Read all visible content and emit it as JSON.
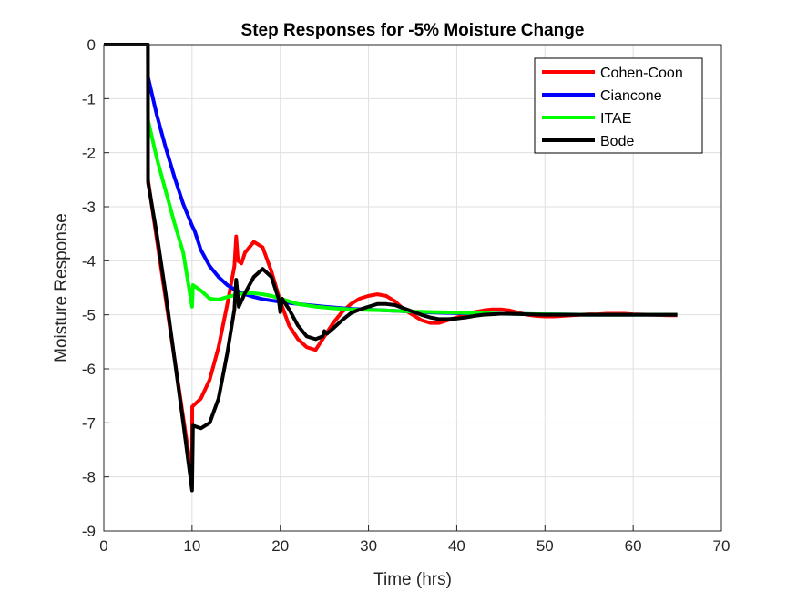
{
  "chart_data": {
    "type": "line",
    "title": "Step Responses for -5% Moisture Change",
    "xlabel": "Time (hrs)",
    "ylabel": "Moisture Response",
    "xlim": [
      0,
      70
    ],
    "ylim": [
      -9,
      0
    ],
    "xticks": [
      0,
      10,
      20,
      30,
      40,
      50,
      60,
      70
    ],
    "yticks": [
      0,
      -1,
      -2,
      -3,
      -4,
      -5,
      -6,
      -7,
      -8,
      -9
    ],
    "grid": true,
    "legend_position": "top-right",
    "series": [
      {
        "name": "Cohen-Coon",
        "color": "#ff0000",
        "points": [
          [
            0,
            0
          ],
          [
            5,
            0
          ],
          [
            5.01,
            -2.5
          ],
          [
            6,
            -3.6
          ],
          [
            7,
            -4.7
          ],
          [
            8,
            -5.8
          ],
          [
            9,
            -6.9
          ],
          [
            10,
            -8.0
          ],
          [
            10.02,
            -6.7
          ],
          [
            11,
            -6.55
          ],
          [
            12,
            -6.2
          ],
          [
            13,
            -5.6
          ],
          [
            14,
            -4.8
          ],
          [
            14.8,
            -4.1
          ],
          [
            15,
            -3.55
          ],
          [
            15.2,
            -4.0
          ],
          [
            15.6,
            -4.05
          ],
          [
            16,
            -3.85
          ],
          [
            17,
            -3.65
          ],
          [
            18,
            -3.75
          ],
          [
            19,
            -4.2
          ],
          [
            20,
            -4.75
          ],
          [
            21,
            -5.2
          ],
          [
            22,
            -5.45
          ],
          [
            23,
            -5.6
          ],
          [
            24,
            -5.65
          ],
          [
            25,
            -5.4
          ],
          [
            26,
            -5.15
          ],
          [
            27,
            -4.95
          ],
          [
            28,
            -4.8
          ],
          [
            29,
            -4.7
          ],
          [
            30,
            -4.65
          ],
          [
            31,
            -4.62
          ],
          [
            32,
            -4.65
          ],
          [
            33,
            -4.75
          ],
          [
            34,
            -4.9
          ],
          [
            35,
            -5.0
          ],
          [
            36,
            -5.1
          ],
          [
            37,
            -5.15
          ],
          [
            38,
            -5.15
          ],
          [
            39,
            -5.1
          ],
          [
            40,
            -5.05
          ],
          [
            41,
            -5.0
          ],
          [
            42,
            -4.95
          ],
          [
            43,
            -4.92
          ],
          [
            44,
            -4.9
          ],
          [
            45,
            -4.9
          ],
          [
            46,
            -4.92
          ],
          [
            47,
            -4.96
          ],
          [
            48,
            -5.0
          ],
          [
            49,
            -5.02
          ],
          [
            50,
            -5.03
          ],
          [
            51,
            -5.03
          ],
          [
            52,
            -5.02
          ],
          [
            53,
            -5.01
          ],
          [
            54,
            -5.0
          ],
          [
            55,
            -4.99
          ],
          [
            56,
            -4.99
          ],
          [
            57,
            -4.98
          ],
          [
            58,
            -4.98
          ],
          [
            59,
            -4.98
          ],
          [
            60,
            -4.99
          ],
          [
            62,
            -5.0
          ],
          [
            64,
            -5.01
          ],
          [
            65,
            -5.01
          ]
        ]
      },
      {
        "name": "Ciancone",
        "color": "#0000ff",
        "points": [
          [
            0,
            0
          ],
          [
            5,
            0
          ],
          [
            5.01,
            -0.6
          ],
          [
            6,
            -1.3
          ],
          [
            7,
            -1.9
          ],
          [
            8,
            -2.45
          ],
          [
            9,
            -2.95
          ],
          [
            10,
            -3.35
          ],
          [
            10.3,
            -3.45
          ],
          [
            11,
            -3.8
          ],
          [
            12,
            -4.1
          ],
          [
            13,
            -4.3
          ],
          [
            14,
            -4.45
          ],
          [
            15,
            -4.55
          ],
          [
            16,
            -4.62
          ],
          [
            17,
            -4.67
          ],
          [
            18,
            -4.71
          ],
          [
            20,
            -4.76
          ],
          [
            22,
            -4.8
          ],
          [
            25,
            -4.85
          ],
          [
            28,
            -4.89
          ],
          [
            32,
            -4.92
          ],
          [
            36,
            -4.95
          ],
          [
            40,
            -4.97
          ],
          [
            45,
            -4.98
          ],
          [
            50,
            -4.99
          ],
          [
            55,
            -5.0
          ],
          [
            60,
            -5.0
          ],
          [
            65,
            -5.0
          ]
        ]
      },
      {
        "name": "ITAE",
        "color": "#00ff00",
        "points": [
          [
            0,
            0
          ],
          [
            5,
            0
          ],
          [
            5.01,
            -1.4
          ],
          [
            6,
            -2.1
          ],
          [
            7,
            -2.7
          ],
          [
            8,
            -3.3
          ],
          [
            9,
            -3.85
          ],
          [
            10,
            -4.85
          ],
          [
            10.1,
            -4.45
          ],
          [
            11,
            -4.55
          ],
          [
            12,
            -4.7
          ],
          [
            13,
            -4.72
          ],
          [
            14,
            -4.67
          ],
          [
            15,
            -4.63
          ],
          [
            16,
            -4.6
          ],
          [
            17,
            -4.6
          ],
          [
            18,
            -4.62
          ],
          [
            19,
            -4.65
          ],
          [
            20,
            -4.7
          ],
          [
            21,
            -4.75
          ],
          [
            22,
            -4.8
          ],
          [
            24,
            -4.85
          ],
          [
            26,
            -4.88
          ],
          [
            28,
            -4.9
          ],
          [
            30,
            -4.91
          ],
          [
            32,
            -4.92
          ],
          [
            35,
            -4.94
          ],
          [
            38,
            -4.95
          ],
          [
            40,
            -4.96
          ],
          [
            45,
            -4.98
          ],
          [
            50,
            -4.99
          ],
          [
            55,
            -5.0
          ],
          [
            60,
            -5.0
          ],
          [
            65,
            -5.0
          ]
        ]
      },
      {
        "name": "Bode",
        "color": "#000000",
        "points": [
          [
            0,
            0
          ],
          [
            5,
            0
          ],
          [
            5.01,
            -2.55
          ],
          [
            6,
            -3.5
          ],
          [
            7,
            -4.6
          ],
          [
            8,
            -5.8
          ],
          [
            9,
            -7.0
          ],
          [
            10,
            -8.25
          ],
          [
            10.1,
            -7.05
          ],
          [
            11,
            -7.1
          ],
          [
            12,
            -7.0
          ],
          [
            13,
            -6.55
          ],
          [
            14,
            -5.7
          ],
          [
            14.8,
            -4.9
          ],
          [
            15,
            -4.35
          ],
          [
            15.3,
            -4.85
          ],
          [
            16,
            -4.6
          ],
          [
            17,
            -4.3
          ],
          [
            18,
            -4.15
          ],
          [
            19,
            -4.3
          ],
          [
            19.8,
            -4.7
          ],
          [
            20,
            -4.95
          ],
          [
            20.2,
            -4.7
          ],
          [
            21,
            -4.9
          ],
          [
            22,
            -5.2
          ],
          [
            23,
            -5.4
          ],
          [
            24,
            -5.45
          ],
          [
            24.8,
            -5.4
          ],
          [
            25,
            -5.3
          ],
          [
            25.3,
            -5.35
          ],
          [
            26,
            -5.25
          ],
          [
            27,
            -5.1
          ],
          [
            28,
            -4.97
          ],
          [
            29,
            -4.9
          ],
          [
            30,
            -4.85
          ],
          [
            31,
            -4.8
          ],
          [
            32,
            -4.8
          ],
          [
            33,
            -4.82
          ],
          [
            34,
            -4.88
          ],
          [
            35,
            -4.94
          ],
          [
            36,
            -5.0
          ],
          [
            37,
            -5.05
          ],
          [
            38,
            -5.08
          ],
          [
            39,
            -5.08
          ],
          [
            40,
            -5.07
          ],
          [
            41,
            -5.05
          ],
          [
            42,
            -5.02
          ],
          [
            43,
            -5.0
          ],
          [
            44,
            -4.99
          ],
          [
            45,
            -4.98
          ],
          [
            46,
            -4.98
          ],
          [
            48,
            -4.99
          ],
          [
            50,
            -5.0
          ],
          [
            55,
            -5.0
          ],
          [
            60,
            -5.0
          ],
          [
            65,
            -5.0
          ]
        ]
      }
    ]
  }
}
